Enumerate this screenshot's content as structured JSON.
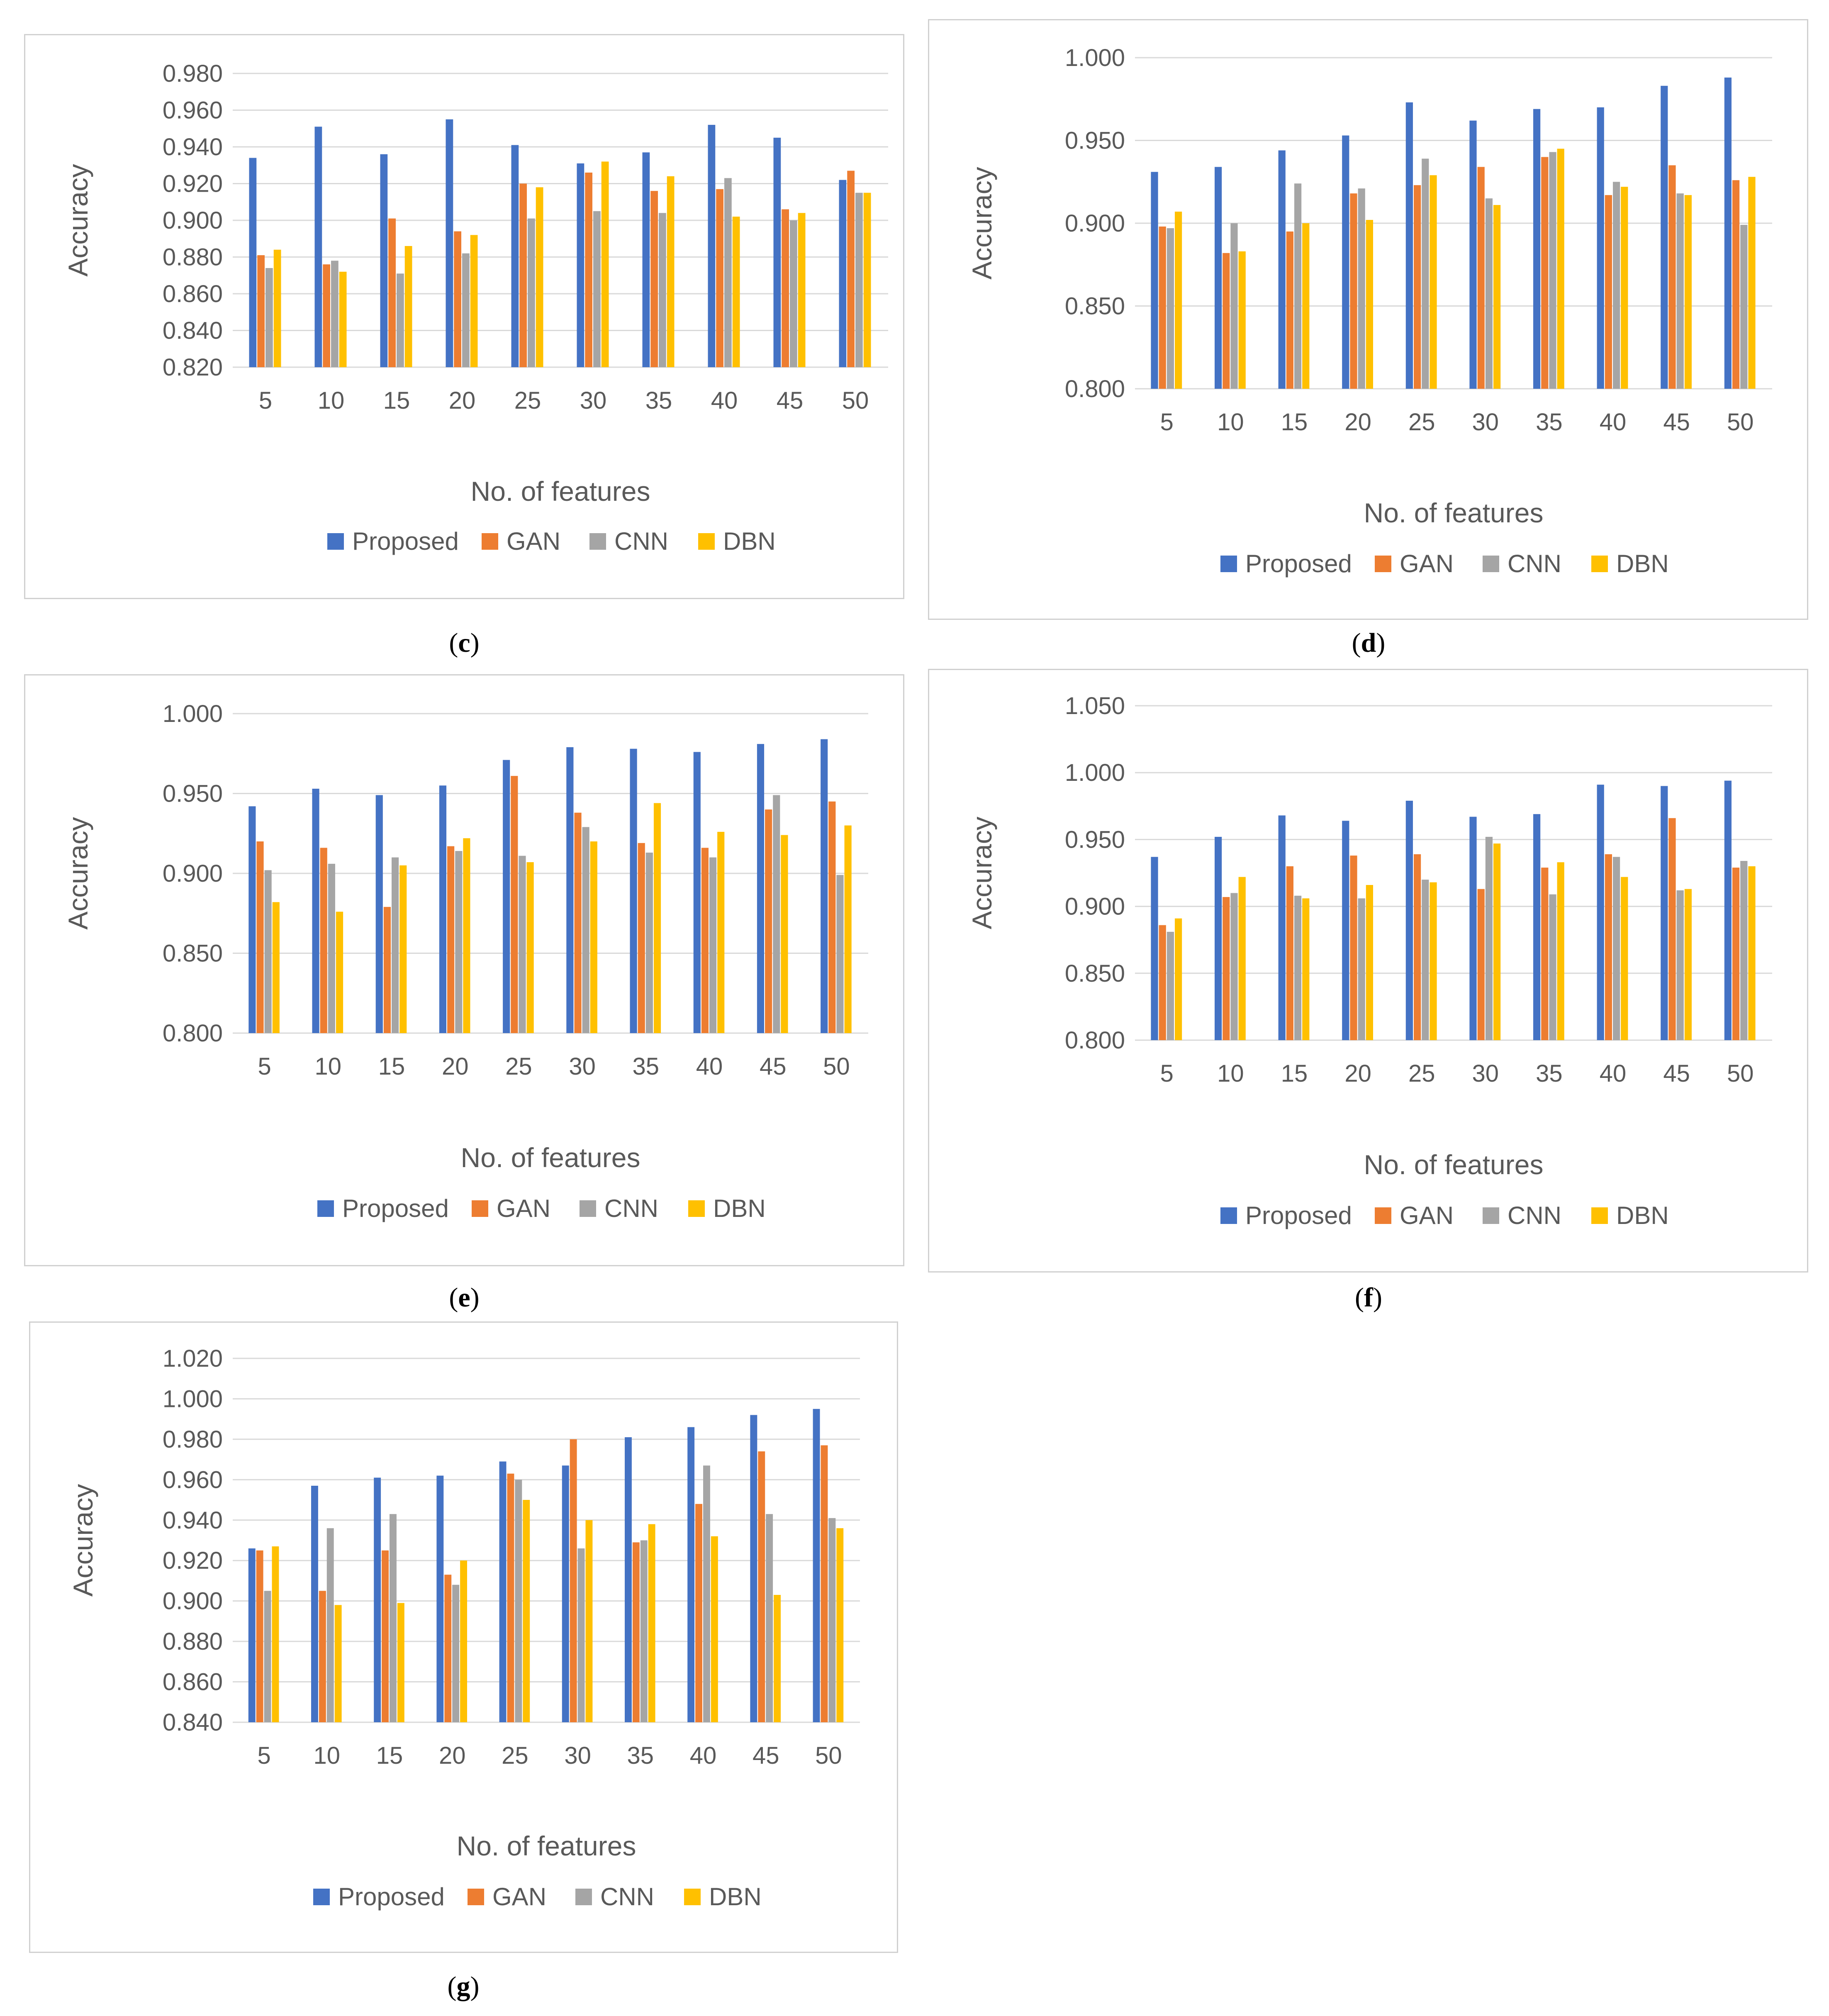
{
  "colors": {
    "Proposed": "#4472C4",
    "GAN": "#ED7D31",
    "CNN": "#A5A5A5",
    "DBN": "#FFC000",
    "grid": "#D9D9D9",
    "text": "#595959"
  },
  "chart_data": [
    {
      "id": "c",
      "caption": "c",
      "type": "bar",
      "xlabel": "No. of features",
      "ylabel": "Accuracy",
      "ylim": [
        0.82,
        0.98
      ],
      "ytick_step": 0.02,
      "ytick_labels": [
        "0.820",
        "0.840",
        "0.860",
        "0.880",
        "0.900",
        "0.920",
        "0.940",
        "0.960",
        "0.980"
      ],
      "categories": [
        "5",
        "10",
        "15",
        "20",
        "25",
        "30",
        "35",
        "40",
        "45",
        "50"
      ],
      "legend": [
        "Proposed",
        "GAN",
        "CNN",
        "DBN"
      ],
      "series": [
        {
          "name": "Proposed",
          "values": [
            0.934,
            0.951,
            0.936,
            0.955,
            0.941,
            0.931,
            0.937,
            0.952,
            0.945,
            0.922
          ]
        },
        {
          "name": "GAN",
          "values": [
            0.881,
            0.876,
            0.901,
            0.894,
            0.92,
            0.926,
            0.916,
            0.917,
            0.906,
            0.927
          ]
        },
        {
          "name": "CNN",
          "values": [
            0.874,
            0.878,
            0.871,
            0.882,
            0.901,
            0.905,
            0.904,
            0.923,
            0.9,
            0.915
          ]
        },
        {
          "name": "DBN",
          "values": [
            0.884,
            0.872,
            0.886,
            0.892,
            0.918,
            0.932,
            0.924,
            0.902,
            0.904,
            0.915
          ]
        }
      ]
    },
    {
      "id": "d",
      "caption": "d",
      "type": "bar",
      "xlabel": "No. of features",
      "ylabel": "Accuracy",
      "ylim": [
        0.8,
        1.0
      ],
      "ytick_step": 0.05,
      "ytick_labels": [
        "0.800",
        "0.850",
        "0.900",
        "0.950",
        "1.000"
      ],
      "categories": [
        "5",
        "10",
        "15",
        "20",
        "25",
        "30",
        "35",
        "40",
        "45",
        "50"
      ],
      "legend": [
        "Proposed",
        "GAN",
        "CNN",
        "DBN"
      ],
      "series": [
        {
          "name": "Proposed",
          "values": [
            0.931,
            0.934,
            0.944,
            0.953,
            0.973,
            0.962,
            0.969,
            0.97,
            0.983,
            0.988
          ]
        },
        {
          "name": "GAN",
          "values": [
            0.898,
            0.882,
            0.895,
            0.918,
            0.923,
            0.934,
            0.94,
            0.917,
            0.935,
            0.926
          ]
        },
        {
          "name": "CNN",
          "values": [
            0.897,
            0.9,
            0.924,
            0.921,
            0.939,
            0.915,
            0.943,
            0.925,
            0.918,
            0.899
          ]
        },
        {
          "name": "DBN",
          "values": [
            0.907,
            0.883,
            0.9,
            0.902,
            0.929,
            0.911,
            0.945,
            0.922,
            0.917,
            0.928
          ]
        }
      ]
    },
    {
      "id": "e",
      "caption": "e",
      "type": "bar",
      "xlabel": "No. of features",
      "ylabel": "Accuracy",
      "ylim": [
        0.8,
        1.0
      ],
      "ytick_step": 0.05,
      "ytick_labels": [
        "0.800",
        "0.850",
        "0.900",
        "0.950",
        "1.000"
      ],
      "categories": [
        "5",
        "10",
        "15",
        "20",
        "25",
        "30",
        "35",
        "40",
        "45",
        "50"
      ],
      "legend": [
        "Proposed",
        "GAN",
        "CNN",
        "DBN"
      ],
      "series": [
        {
          "name": "Proposed",
          "values": [
            0.942,
            0.953,
            0.949,
            0.955,
            0.971,
            0.979,
            0.978,
            0.976,
            0.981,
            0.984
          ]
        },
        {
          "name": "GAN",
          "values": [
            0.92,
            0.916,
            0.879,
            0.917,
            0.961,
            0.938,
            0.919,
            0.916,
            0.94,
            0.945
          ]
        },
        {
          "name": "CNN",
          "values": [
            0.902,
            0.906,
            0.91,
            0.914,
            0.911,
            0.929,
            0.913,
            0.91,
            0.949,
            0.899
          ]
        },
        {
          "name": "DBN",
          "values": [
            0.882,
            0.876,
            0.905,
            0.922,
            0.907,
            0.92,
            0.944,
            0.926,
            0.924,
            0.93
          ]
        }
      ]
    },
    {
      "id": "f",
      "caption": "f",
      "type": "bar",
      "xlabel": "No. of features",
      "ylabel": "Accuracy",
      "ylim": [
        0.8,
        1.05
      ],
      "ytick_step": 0.05,
      "ytick_labels": [
        "0.800",
        "0.850",
        "0.900",
        "0.950",
        "1.000",
        "1.050"
      ],
      "categories": [
        "5",
        "10",
        "15",
        "20",
        "25",
        "30",
        "35",
        "40",
        "45",
        "50"
      ],
      "legend": [
        "Proposed",
        "GAN",
        "CNN",
        "DBN"
      ],
      "series": [
        {
          "name": "Proposed",
          "values": [
            0.937,
            0.952,
            0.968,
            0.964,
            0.979,
            0.967,
            0.969,
            0.991,
            0.99,
            0.994
          ]
        },
        {
          "name": "GAN",
          "values": [
            0.886,
            0.907,
            0.93,
            0.938,
            0.939,
            0.913,
            0.929,
            0.939,
            0.966,
            0.929
          ]
        },
        {
          "name": "CNN",
          "values": [
            0.881,
            0.91,
            0.908,
            0.906,
            0.92,
            0.952,
            0.909,
            0.937,
            0.912,
            0.934
          ]
        },
        {
          "name": "DBN",
          "values": [
            0.891,
            0.922,
            0.906,
            0.916,
            0.918,
            0.947,
            0.933,
            0.922,
            0.913,
            0.93
          ]
        }
      ]
    },
    {
      "id": "g",
      "caption": "g",
      "type": "bar",
      "xlabel": "No. of features",
      "ylabel": "Accuracy",
      "ylim": [
        0.84,
        1.02
      ],
      "ytick_step": 0.02,
      "ytick_labels": [
        "0.840",
        "0.860",
        "0.880",
        "0.900",
        "0.920",
        "0.940",
        "0.960",
        "0.980",
        "1.000",
        "1.020"
      ],
      "categories": [
        "5",
        "10",
        "15",
        "20",
        "25",
        "30",
        "35",
        "40",
        "45",
        "50"
      ],
      "legend": [
        "Proposed",
        "GAN",
        "CNN",
        "DBN"
      ],
      "series": [
        {
          "name": "Proposed",
          "values": [
            0.926,
            0.957,
            0.961,
            0.962,
            0.969,
            0.967,
            0.981,
            0.986,
            0.992,
            0.995
          ]
        },
        {
          "name": "GAN",
          "values": [
            0.925,
            0.905,
            0.925,
            0.913,
            0.963,
            0.98,
            0.929,
            0.948,
            0.974,
            0.977
          ]
        },
        {
          "name": "CNN",
          "values": [
            0.905,
            0.936,
            0.943,
            0.908,
            0.96,
            0.926,
            0.93,
            0.967,
            0.943,
            0.941
          ]
        },
        {
          "name": "DBN",
          "values": [
            0.927,
            0.898,
            0.899,
            0.92,
            0.95,
            0.94,
            0.938,
            0.932,
            0.903,
            0.936
          ]
        }
      ]
    }
  ]
}
